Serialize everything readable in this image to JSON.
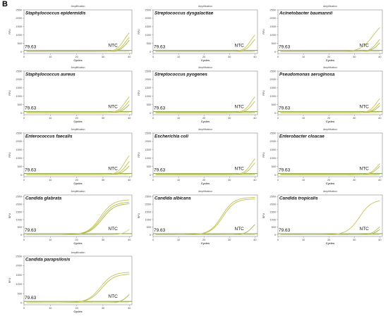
{
  "figure": {
    "panel_letter": "B",
    "threshold_label": "79.63",
    "ntc_label": "NTC",
    "plot_header": "Amplification",
    "x_axis_label": "Cycles",
    "y_axis_label": "RFU",
    "x_ticks": [
      0,
      10,
      20,
      30,
      40
    ],
    "line_colors": [
      "#c8c25a",
      "#b9c04e",
      "#a7b447",
      "#d9d17a"
    ],
    "threshold_color": "#6f8f1a",
    "axis_color": "#888888"
  },
  "chart_data": [
    {
      "type": "line",
      "title": "Staphylococcus epidermidis",
      "xlabel": "Cycles",
      "ylabel": "RFU",
      "xlim": [
        0,
        41
      ],
      "ylim": [
        -100,
        2500
      ],
      "y_ticks": [
        0,
        500,
        1000,
        1500,
        2000,
        2500
      ],
      "threshold": 79.63,
      "annotations": [
        "79.63",
        "NTC"
      ],
      "series": [
        {
          "model": "late",
          "ct": 34.5,
          "plateau": 1400
        },
        {
          "model": "late",
          "ct": 35.2,
          "plateau": 1200
        },
        {
          "model": "late",
          "ct": 35.8,
          "plateau": 1100
        },
        {
          "model": "flat",
          "plateau": 20
        }
      ]
    },
    {
      "type": "line",
      "title": "Streptococcus dysgalactiae",
      "xlabel": "Cycles",
      "ylabel": "RFU",
      "xlim": [
        0,
        41
      ],
      "ylim": [
        -100,
        2500
      ],
      "y_ticks": [
        0,
        500,
        1000,
        1500,
        2000,
        2500
      ],
      "threshold": 79.63,
      "annotations": [
        "79.63",
        "NTC"
      ],
      "series": [
        {
          "model": "late",
          "ct": 34.8,
          "plateau": 1300
        },
        {
          "model": "late",
          "ct": 35.5,
          "plateau": 1100
        },
        {
          "model": "flat",
          "plateau": 20
        },
        {
          "model": "flat",
          "plateau": 10
        }
      ]
    },
    {
      "type": "line",
      "title": "Acinetobacter baumannii",
      "xlabel": "Cycles",
      "ylabel": "RFU",
      "xlim": [
        0,
        41
      ],
      "ylim": [
        -100,
        2500
      ],
      "y_ticks": [
        0,
        500,
        1000,
        1500,
        2000,
        2500
      ],
      "threshold": 79.63,
      "annotations": [
        "79.63",
        "NTC"
      ],
      "series": [
        {
          "model": "amp",
          "ct": 33.8,
          "plateau": 1900
        },
        {
          "model": "late",
          "ct": 35.5,
          "plateau": 1100
        },
        {
          "model": "late",
          "ct": 36.0,
          "plateau": 900
        },
        {
          "model": "flat",
          "plateau": 20
        }
      ]
    },
    {
      "type": "line",
      "title": "Staphylococcus aureus",
      "xlabel": "Cycles",
      "ylabel": "RFU",
      "xlim": [
        0,
        41
      ],
      "ylim": [
        -100,
        2500
      ],
      "y_ticks": [
        0,
        500,
        1000,
        1500,
        2000,
        2500
      ],
      "threshold": 79.63,
      "annotations": [
        "79.63",
        "NTC"
      ],
      "series": [
        {
          "model": "late",
          "ct": 35.0,
          "plateau": 1300
        },
        {
          "model": "late",
          "ct": 35.6,
          "plateau": 1100
        },
        {
          "model": "late",
          "ct": 36.2,
          "plateau": 900
        },
        {
          "model": "flat",
          "plateau": 20
        }
      ]
    },
    {
      "type": "line",
      "title": "Streptococcus pyogenes",
      "xlabel": "Cycles",
      "ylabel": "RFU",
      "xlim": [
        0,
        41
      ],
      "ylim": [
        -100,
        2500
      ],
      "y_ticks": [
        0,
        500,
        1000,
        1500,
        2000,
        2500
      ],
      "threshold": 79.63,
      "annotations": [
        "79.63",
        "NTC"
      ],
      "series": [
        {
          "model": "late",
          "ct": 35.0,
          "plateau": 1300
        },
        {
          "model": "late",
          "ct": 35.7,
          "plateau": 1100
        },
        {
          "model": "flat",
          "plateau": 20
        }
      ]
    },
    {
      "type": "line",
      "title": "Pseudomonas aeruginosa",
      "xlabel": "Cycles",
      "ylabel": "RFU",
      "xlim": [
        0,
        41
      ],
      "ylim": [
        -100,
        2500
      ],
      "y_ticks": [
        0,
        500,
        1000,
        1500,
        2000,
        2500
      ],
      "threshold": 79.63,
      "annotations": [
        "79.63",
        "NTC"
      ],
      "series": [
        {
          "model": "late",
          "ct": 35.2,
          "plateau": 1200
        },
        {
          "model": "late",
          "ct": 35.9,
          "plateau": 1000
        },
        {
          "model": "late",
          "ct": 36.3,
          "plateau": 800
        },
        {
          "model": "flat",
          "plateau": 20
        }
      ]
    },
    {
      "type": "line",
      "title": "Enterococcus faecalis",
      "xlabel": "Cycles",
      "ylabel": "RFU",
      "xlim": [
        0,
        41
      ],
      "ylim": [
        -100,
        2500
      ],
      "y_ticks": [
        0,
        500,
        1000,
        1500,
        2000,
        2500
      ],
      "threshold": 79.63,
      "annotations": [
        "79.63",
        "NTC"
      ],
      "series": [
        {
          "model": "late",
          "ct": 34.8,
          "plateau": 1500
        },
        {
          "model": "late",
          "ct": 35.5,
          "plateau": 1200
        },
        {
          "model": "late",
          "ct": 36.0,
          "plateau": 900
        },
        {
          "model": "flat",
          "plateau": 20
        }
      ]
    },
    {
      "type": "line",
      "title": "Escherichia coli",
      "xlabel": "Cycles",
      "ylabel": "RFU",
      "xlim": [
        0,
        41
      ],
      "ylim": [
        -100,
        2500
      ],
      "y_ticks": [
        0,
        500,
        1000,
        1500,
        2000,
        2500
      ],
      "threshold": 79.63,
      "annotations": [
        "79.63",
        "NTC"
      ],
      "series": [
        {
          "model": "late",
          "ct": 35.0,
          "plateau": 1300
        },
        {
          "model": "late",
          "ct": 35.6,
          "plateau": 1100
        },
        {
          "model": "flat",
          "plateau": 20
        }
      ]
    },
    {
      "type": "line",
      "title": "Enterobacter cloacae",
      "xlabel": "Cycles",
      "ylabel": "RFU",
      "xlim": [
        0,
        41
      ],
      "ylim": [
        -100,
        2500
      ],
      "y_ticks": [
        0,
        500,
        1000,
        1500,
        2000,
        2500
      ],
      "threshold": 79.63,
      "annotations": [
        "79.63",
        "NTC"
      ],
      "series": [
        {
          "model": "late",
          "ct": 35.5,
          "plateau": 1000
        },
        {
          "model": "late",
          "ct": 36.0,
          "plateau": 900
        },
        {
          "model": "flat",
          "plateau": 20
        }
      ]
    },
    {
      "type": "line",
      "title": "Candida glabrata",
      "xlabel": "Cycles",
      "ylabel": "RFU",
      "xlim": [
        0,
        41
      ],
      "ylim": [
        -100,
        2600
      ],
      "y_ticks": [
        0,
        500,
        1000,
        1500,
        2000,
        2500
      ],
      "threshold": 79.63,
      "annotations": [
        "79.63",
        "NTC"
      ],
      "series": [
        {
          "model": "amp",
          "ct": 25.5,
          "plateau": 2300
        },
        {
          "model": "amp",
          "ct": 25.8,
          "plateau": 2150
        },
        {
          "model": "amp",
          "ct": 26.2,
          "plateau": 2050
        },
        {
          "model": "late",
          "ct": 36.5,
          "plateau": 700
        }
      ]
    },
    {
      "type": "line",
      "title": "Candida albicans",
      "xlabel": "Cycles",
      "ylabel": "RFU",
      "xlim": [
        0,
        41
      ],
      "ylim": [
        -100,
        2600
      ],
      "y_ticks": [
        0,
        500,
        1000,
        1500,
        2000,
        2500
      ],
      "threshold": 79.63,
      "annotations": [
        "79.63",
        "NTC"
      ],
      "series": [
        {
          "model": "amp",
          "ct": 23.5,
          "plateau": 2450
        },
        {
          "model": "amp",
          "ct": 23.9,
          "plateau": 2350
        },
        {
          "model": "late",
          "ct": 35.5,
          "plateau": 1000
        },
        {
          "model": "flat",
          "plateau": 20
        }
      ]
    },
    {
      "type": "line",
      "title": "Candida tropicalis",
      "xlabel": "Cycles",
      "ylabel": "RFU",
      "xlim": [
        0,
        41
      ],
      "ylim": [
        -100,
        2600
      ],
      "y_ticks": [
        0,
        500,
        1000,
        1500,
        2000,
        2500
      ],
      "threshold": 79.63,
      "annotations": [
        "79.63",
        "NTC"
      ],
      "series": [
        {
          "model": "amp",
          "ct": 28.5,
          "plateau": 2300
        },
        {
          "model": "late",
          "ct": 36.0,
          "plateau": 900
        },
        {
          "model": "late",
          "ct": 36.5,
          "plateau": 700
        },
        {
          "model": "flat",
          "plateau": 20
        }
      ]
    },
    {
      "type": "line",
      "title": "Candida parapsilosis",
      "xlabel": "Cycles",
      "ylabel": "RFU",
      "xlim": [
        0,
        41
      ],
      "ylim": [
        -100,
        2500
      ],
      "y_ticks": [
        0,
        500,
        1000,
        1500,
        2000,
        2500
      ],
      "threshold": 79.63,
      "annotations": [
        "79.63",
        "NTC"
      ],
      "series": [
        {
          "model": "amp",
          "ct": 25.5,
          "plateau": 1650
        },
        {
          "model": "amp",
          "ct": 26.0,
          "plateau": 1550
        },
        {
          "model": "late",
          "ct": 36.2,
          "plateau": 800
        },
        {
          "model": "flat",
          "plateau": 20
        }
      ]
    }
  ]
}
